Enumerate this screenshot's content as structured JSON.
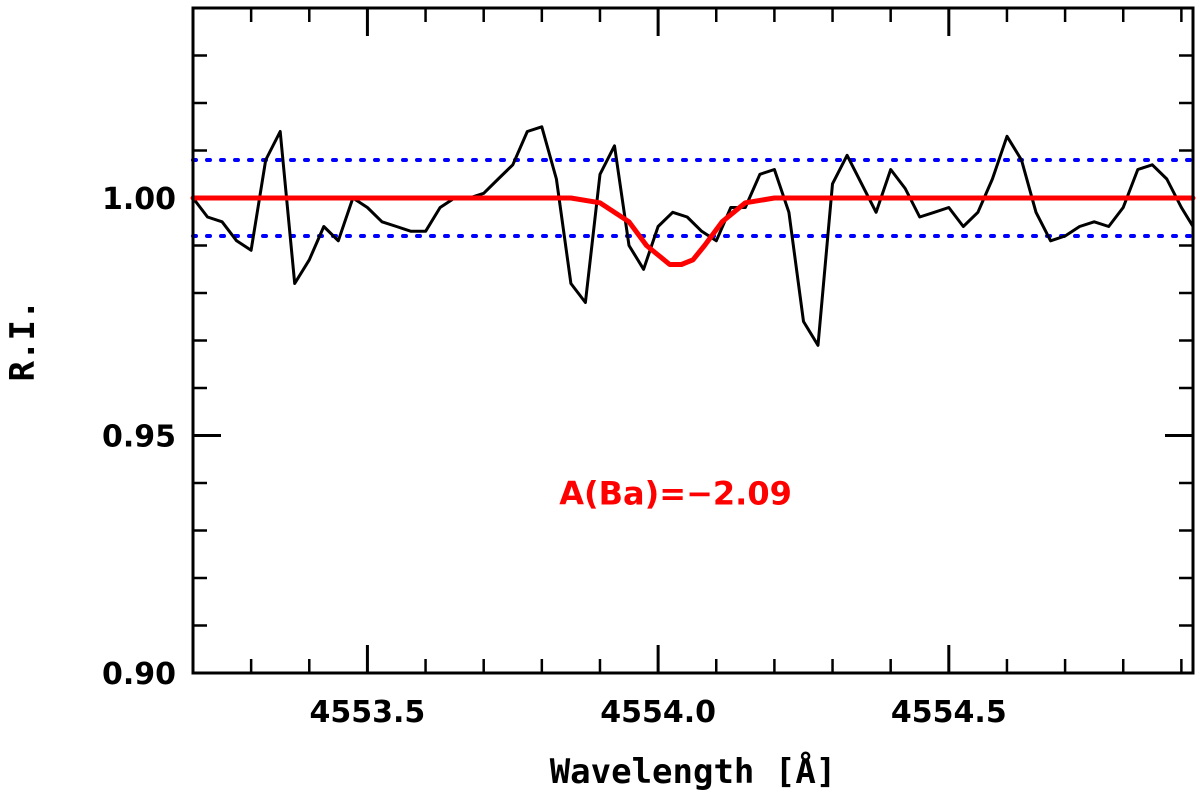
{
  "chart_data": {
    "type": "line",
    "title": "",
    "xlabel": "Wavelength [Å]",
    "ylabel": "R.I.",
    "xlim": [
      4553.2,
      4554.92
    ],
    "ylim": [
      0.9,
      1.04
    ],
    "x_major_ticks": [
      4553.5,
      4554.0,
      4554.5
    ],
    "x_tick_labels": [
      "4553.5",
      "4554.0",
      "4554.5"
    ],
    "x_minor_step": 0.1,
    "y_major_ticks": [
      0.9,
      0.95,
      1.0
    ],
    "y_tick_labels": [
      "0.90",
      "0.95",
      "1.00"
    ],
    "y_minor_step": 0.01,
    "grid": false,
    "colors": {
      "observed": "#000000",
      "synthetic": "#ff0000",
      "limits": "#0000ff",
      "annotation": "#ff0000"
    },
    "series": [
      {
        "style": "solid",
        "x": [
          4553.2,
          4553.225,
          4553.25,
          4553.275,
          4553.3,
          4553.325,
          4553.35,
          4553.375,
          4553.4,
          4553.425,
          4553.45,
          4553.475,
          4553.5,
          4553.525,
          4553.55,
          4553.575,
          4553.6,
          4553.625,
          4553.65,
          4553.675,
          4553.7,
          4553.725,
          4553.75,
          4553.775,
          4553.8,
          4553.825,
          4553.85,
          4553.875,
          4553.9,
          4553.925,
          4553.95,
          4553.975,
          4554.0,
          4554.025,
          4554.05,
          4554.075,
          4554.1,
          4554.125,
          4554.15,
          4554.175,
          4554.2,
          4554.225,
          4554.25,
          4554.275,
          4554.3,
          4554.325,
          4554.35,
          4554.375,
          4554.4,
          4554.425,
          4554.45,
          4554.475,
          4554.5,
          4554.525,
          4554.55,
          4554.575,
          4554.6,
          4554.625,
          4554.65,
          4554.675,
          4554.7,
          4554.725,
          4554.75,
          4554.775,
          4554.8,
          4554.825,
          4554.85,
          4554.875,
          4554.9,
          4554.92
        ],
        "y": [
          1.0,
          0.996,
          0.995,
          0.991,
          0.989,
          1.008,
          1.014,
          0.982,
          0.987,
          0.994,
          0.991,
          1.0,
          0.998,
          0.995,
          0.994,
          0.993,
          0.993,
          0.998,
          1.0,
          1.0,
          1.001,
          1.004,
          1.007,
          1.014,
          1.015,
          1.004,
          0.982,
          0.978,
          1.005,
          1.011,
          0.99,
          0.985,
          0.994,
          0.997,
          0.996,
          0.993,
          0.991,
          0.998,
          0.998,
          1.005,
          1.006,
          0.997,
          0.974,
          0.969,
          1.003,
          1.009,
          1.003,
          0.997,
          1.006,
          1.002,
          0.996,
          0.997,
          0.998,
          0.994,
          0.997,
          1.004,
          1.013,
          1.008,
          0.997,
          0.991,
          0.992,
          0.994,
          0.995,
          0.994,
          0.998,
          1.006,
          1.007,
          1.004,
          0.998,
          0.994
        ]
      },
      {
        "style": "solid",
        "x": [
          4553.2,
          4553.85,
          4553.9,
          4553.95,
          4553.98,
          4554.0,
          4554.02,
          4554.04,
          4554.06,
          4554.08,
          4554.11,
          4554.15,
          4554.2,
          4554.92
        ],
        "y": [
          1.0,
          1.0,
          0.999,
          0.995,
          0.99,
          0.988,
          0.986,
          0.986,
          0.987,
          0.99,
          0.995,
          0.999,
          1.0,
          1.0
        ]
      }
    ],
    "reference_lines": [
      {
        "y": 1.008,
        "style": "dotted"
      },
      {
        "y": 0.992,
        "style": "dotted"
      }
    ],
    "annotations": [
      {
        "text": "A(Ba)=−2.09",
        "x": 4554.03,
        "y": 0.9355
      }
    ]
  }
}
